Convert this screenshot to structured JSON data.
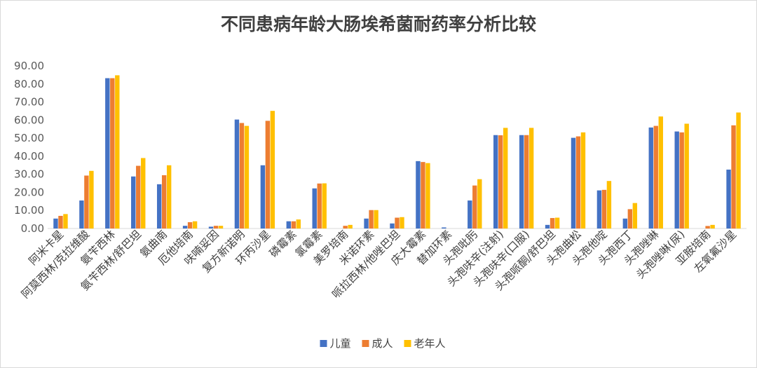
{
  "chart_data": {
    "type": "bar",
    "title": "不同患病年龄大肠埃希菌耐药率分析比较",
    "xlabel": "",
    "ylabel": "",
    "ylim": [
      0,
      90
    ],
    "yticks": [
      "0.00",
      "10.00",
      "20.00",
      "30.00",
      "40.00",
      "50.00",
      "60.00",
      "70.00",
      "80.00",
      "90.00"
    ],
    "grid": false,
    "legend_position": "bottom",
    "categories": [
      "阿米卡星",
      "阿莫西林/克拉维酸",
      "氨苄西林",
      "氨苄西林/舒巴坦",
      "氨曲南",
      "厄他培南",
      "呋喃妥因",
      "复方新诺明",
      "环丙沙星",
      "磷霉素",
      "氯霉素",
      "美罗培南",
      "米诺环素",
      "哌拉西林/他唑巴坦",
      "庆大霉素",
      "替加环素",
      "头孢吡肟",
      "头孢呋辛(注射)",
      "头孢呋辛(口服)",
      "头孢哌酮/舒巴坦",
      "头孢曲松",
      "头孢他啶",
      "头孢西丁",
      "头孢唑啉",
      "头孢唑啉(尿)",
      "亚胺培南",
      "左氧氟沙星"
    ],
    "series": [
      {
        "name": "儿童",
        "color": "#4472C4",
        "values": [
          5.5,
          15.5,
          83.2,
          28.8,
          24.5,
          1.5,
          1.0,
          60.3,
          35.0,
          4.0,
          22.2,
          0.0,
          5.5,
          2.8,
          37.3,
          0.6,
          15.5,
          51.7,
          51.7,
          2.0,
          50.2,
          21.1,
          5.5,
          55.9,
          53.7,
          0.0,
          32.6
        ]
      },
      {
        "name": "成人",
        "color": "#ED7D31",
        "values": [
          7.0,
          29.3,
          83.2,
          34.7,
          29.5,
          3.5,
          1.5,
          58.4,
          59.6,
          4.0,
          24.9,
          1.5,
          10.2,
          6.0,
          36.8,
          0.0,
          23.8,
          51.6,
          51.7,
          5.8,
          51.0,
          21.4,
          10.7,
          56.8,
          53.2,
          1.4,
          57.1
        ]
      },
      {
        "name": "老年人",
        "color": "#FFC000",
        "values": [
          8.0,
          31.9,
          84.8,
          39.0,
          35.0,
          4.0,
          1.5,
          56.8,
          65.1,
          5.0,
          25.0,
          2.0,
          10.2,
          6.3,
          36.2,
          0.0,
          27.3,
          55.7,
          55.7,
          6.0,
          53.2,
          26.3,
          14.1,
          62.0,
          58.0,
          2.0,
          64.2
        ]
      }
    ]
  }
}
